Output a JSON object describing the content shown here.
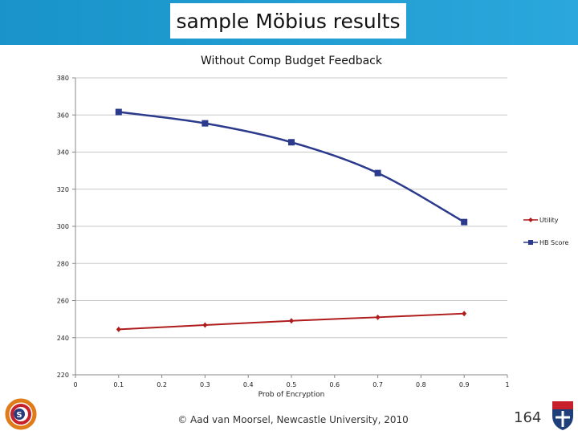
{
  "slide": {
    "title": "sample Möbius results",
    "footer": "© Aad van Moorsel, Newcastle University, 2010",
    "page_number": "164"
  },
  "colors": {
    "header": "#1993c9",
    "series_utility": "#b01c1c",
    "series_hb": "#2b3a8c",
    "gridline": "#c8c8c8"
  },
  "chart_data": {
    "type": "line",
    "title": "Without Comp Budget Feedback",
    "xlabel": "Prob of Encryption",
    "ylabel": "",
    "xlim": [
      0,
      1
    ],
    "ylim": [
      220,
      380
    ],
    "x_ticks": [
      "0",
      "0.1",
      "0.2",
      "0.3",
      "0.4",
      "0.5",
      "0.6",
      "0.7",
      "0.8",
      "0.9",
      "1"
    ],
    "y_ticks": [
      "220",
      "240",
      "260",
      "280",
      "300",
      "320",
      "340",
      "360",
      "380"
    ],
    "grid": true,
    "legend_position": "right",
    "series": [
      {
        "name": "Utility",
        "marker": "diamond",
        "color": "#b01c1c",
        "x": [
          0.1,
          0.3,
          0.5,
          0.7,
          0.9
        ],
        "values": [
          244.5,
          246.8,
          249.1,
          251.0,
          253.0
        ]
      },
      {
        "name": "HB Score",
        "marker": "square",
        "color": "#2b3a8c",
        "x": [
          0.1,
          0.3,
          0.5,
          0.7,
          0.9
        ],
        "values": [
          361.6,
          355.5,
          345.3,
          328.7,
          302.3
        ]
      }
    ]
  }
}
